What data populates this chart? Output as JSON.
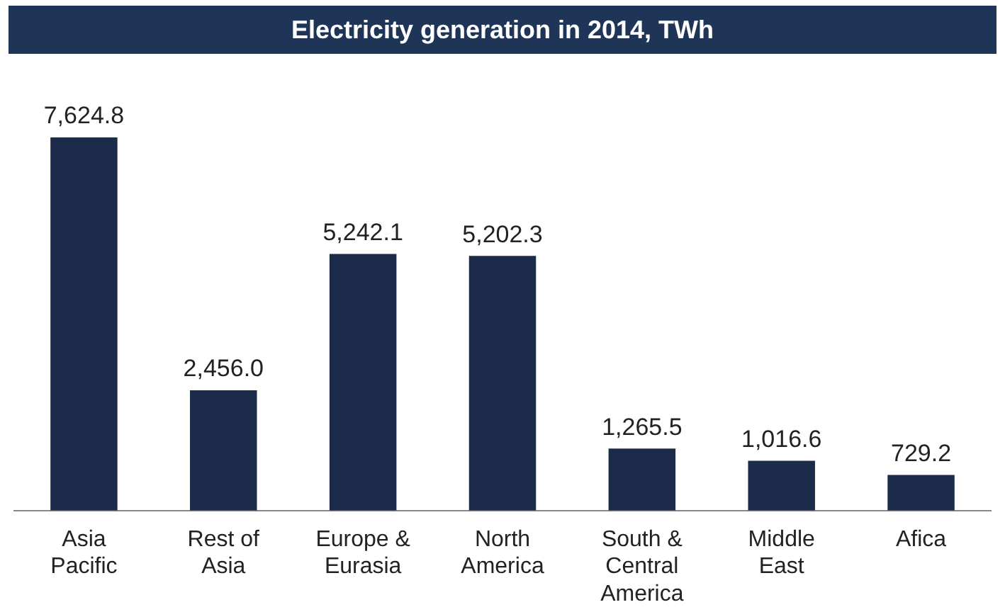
{
  "chart_data": {
    "type": "bar",
    "title": "Electricity generation in 2014, TWh",
    "categories": [
      "Asia Pacific",
      "Rest of Asia",
      "Europe & Eurasia",
      "North America",
      "South & Central America",
      "Middle East",
      "Afica"
    ],
    "values": [
      7624.8,
      2456.0,
      5242.1,
      5202.3,
      1265.5,
      1016.6,
      729.2
    ],
    "value_labels": [
      "7,624.8",
      "2,456.0",
      "5,242.1",
      "5,202.3",
      "1,265.5",
      "1,016.6",
      "729.2"
    ],
    "color": "#1c2b4a",
    "grid": false,
    "tick_labels": "x"
  }
}
